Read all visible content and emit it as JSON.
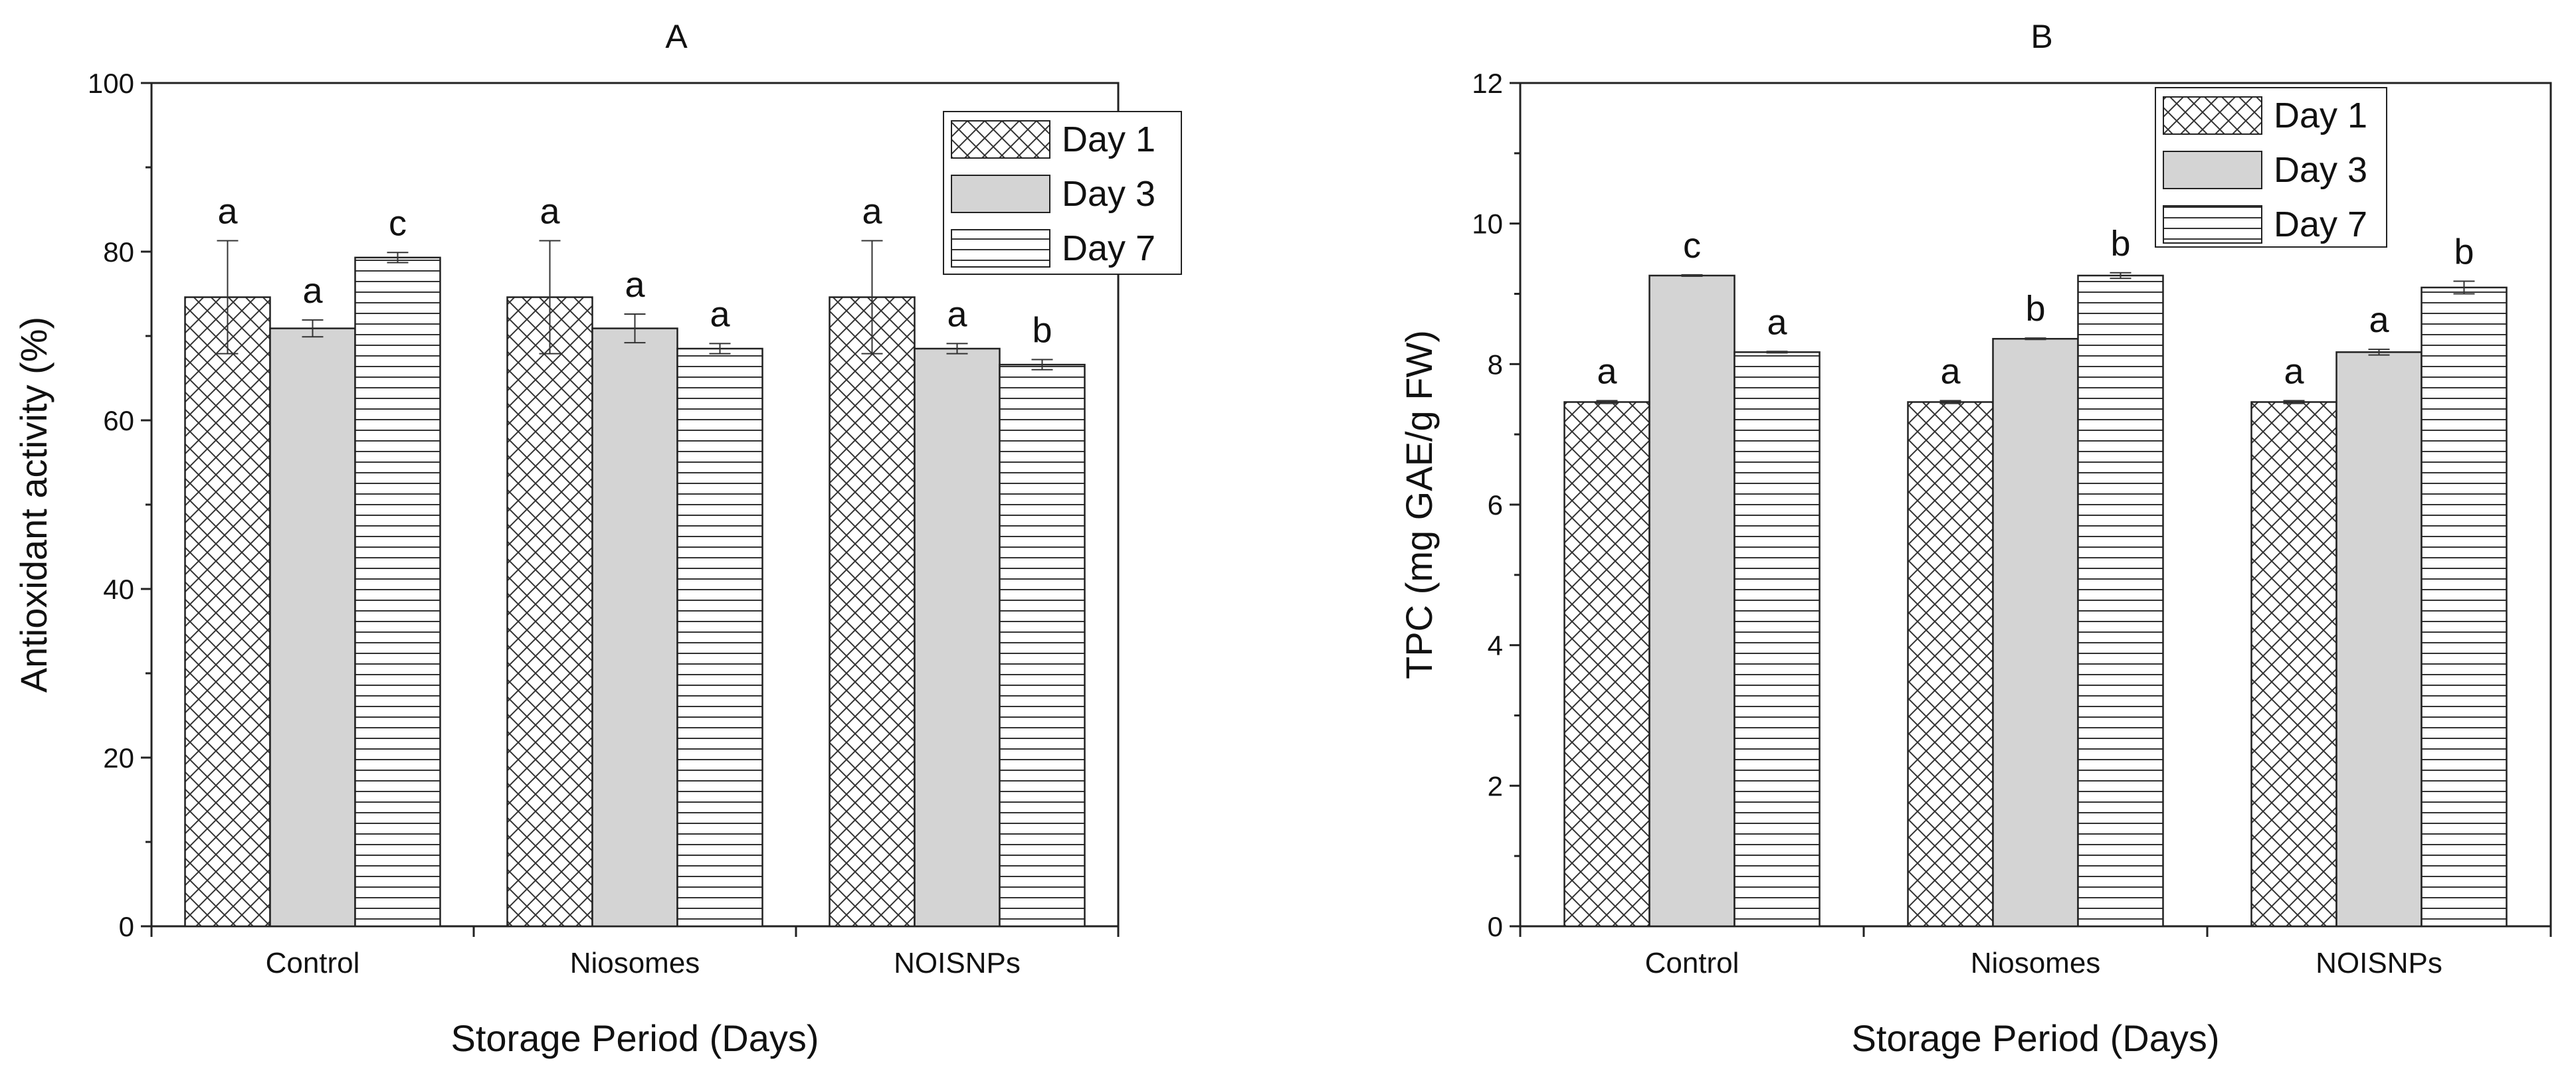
{
  "chart_data": [
    {
      "type": "bar",
      "title": "A",
      "xlabel": "Storage Period (Days)",
      "ylabel": "Antioxidant activity (%)",
      "ylim": [
        0,
        100
      ],
      "yticks": [
        0,
        20,
        40,
        60,
        80,
        100
      ],
      "categories": [
        "Control",
        "Niosomes",
        "NOISNPs"
      ],
      "legend_position": "top-right",
      "series": [
        {
          "name": "Day 1",
          "pattern": "crosshatch",
          "values": [
            74.6,
            74.6,
            74.6
          ],
          "errors": [
            6.7,
            6.7,
            6.7
          ],
          "labels": [
            "a",
            "a",
            "a"
          ]
        },
        {
          "name": "Day 3",
          "pattern": "gray",
          "values": [
            70.9,
            70.9,
            68.5
          ],
          "errors": [
            1.0,
            1.7,
            0.6
          ],
          "labels": [
            "a",
            "a",
            "a"
          ]
        },
        {
          "name": "Day 7",
          "pattern": "horizontal",
          "values": [
            79.3,
            68.5,
            66.6
          ],
          "errors": [
            0.6,
            0.6,
            0.6
          ],
          "labels": [
            "c",
            "a",
            "b"
          ]
        }
      ]
    },
    {
      "type": "bar",
      "title": "B",
      "xlabel": "Storage Period (Days)",
      "ylabel": "TPC (mg GAE/g FW)",
      "ylim": [
        0,
        12
      ],
      "yticks": [
        0,
        2,
        4,
        6,
        8,
        10,
        12
      ],
      "categories": [
        "Control",
        "Niosomes",
        "NOISNPs"
      ],
      "legend_position": "top-right",
      "series": [
        {
          "name": "Day 1",
          "pattern": "crosshatch",
          "values": [
            7.46,
            7.46,
            7.46
          ],
          "errors": [
            0.02,
            0.02,
            0.02
          ],
          "labels": [
            "a",
            "a",
            "a"
          ]
        },
        {
          "name": "Day 3",
          "pattern": "gray",
          "values": [
            9.26,
            8.36,
            8.17
          ],
          "errors": [
            0.01,
            0.01,
            0.04
          ],
          "labels": [
            "c",
            "b",
            "a"
          ]
        },
        {
          "name": "Day 7",
          "pattern": "horizontal",
          "values": [
            8.17,
            9.26,
            9.09
          ],
          "errors": [
            0.01,
            0.04,
            0.09
          ],
          "labels": [
            "a",
            "b",
            "b"
          ]
        }
      ]
    }
  ]
}
